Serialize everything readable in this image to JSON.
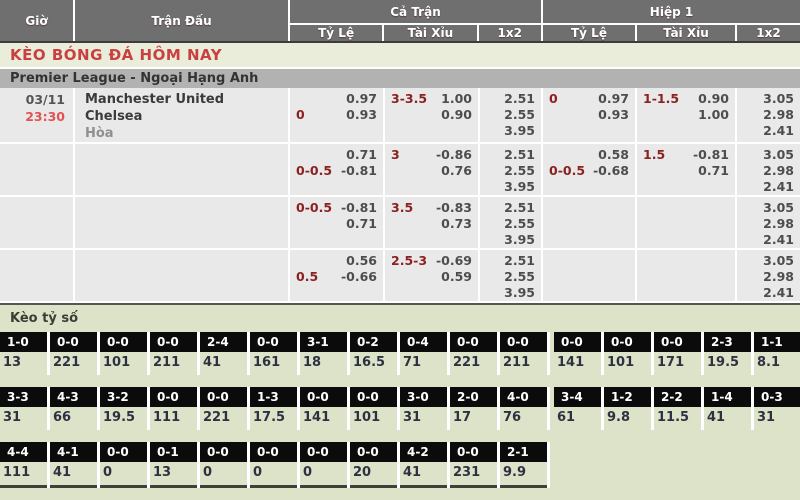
{
  "header": {
    "gio": "Giờ",
    "tran_dau": "Trận Đấu",
    "ca_tran": "Cả Trận",
    "hiep_1": "Hiệp 1",
    "ty_le": "Tỷ Lệ",
    "tai_xiu": "Tài Xỉu",
    "one_x_two": "1x2"
  },
  "title": {
    "text": "KÈO BÓNG ĐÁ HÔM NAY"
  },
  "league": {
    "text": "Premier League - Ngoại Hạng Anh"
  },
  "match": {
    "date": "03/11",
    "time": "23:30",
    "home": "Manchester United",
    "away": "Chelsea",
    "draw_label": "Hòa"
  },
  "odds_rows": [
    {
      "ft_hcp": [
        {
          "h": "",
          "o": "0.97"
        },
        {
          "h": "0",
          "o": "0.93"
        }
      ],
      "ft_ou": [
        {
          "h": "3-3.5",
          "o": "1.00"
        },
        {
          "h": "",
          "o": "0.90"
        }
      ],
      "ft_1x2": [
        "2.51",
        "2.55",
        "3.95"
      ],
      "h1_hcp": [
        {
          "h": "0",
          "o": "0.97"
        },
        {
          "h": "",
          "o": "0.93"
        }
      ],
      "h1_ou": [
        {
          "h": "1-1.5",
          "o": "0.90"
        },
        {
          "h": "",
          "o": "1.00"
        }
      ],
      "h1_1x2": [
        "3.05",
        "2.98",
        "2.41"
      ]
    },
    {
      "ft_hcp": [
        {
          "h": "",
          "o": "0.71"
        },
        {
          "h": "0-0.5",
          "o": "-0.81"
        }
      ],
      "ft_ou": [
        {
          "h": "3",
          "o": "-0.86"
        },
        {
          "h": "",
          "o": "0.76"
        }
      ],
      "ft_1x2": [
        "2.51",
        "2.55",
        "3.95"
      ],
      "h1_hcp": [
        {
          "h": "",
          "o": "0.58"
        },
        {
          "h": "0-0.5",
          "o": "-0.68"
        }
      ],
      "h1_ou": [
        {
          "h": "1.5",
          "o": "-0.81"
        },
        {
          "h": "",
          "o": "0.71"
        }
      ],
      "h1_1x2": [
        "3.05",
        "2.98",
        "2.41"
      ]
    },
    {
      "ft_hcp": [
        {
          "h": "0-0.5",
          "o": "-0.81"
        },
        {
          "h": "",
          "o": "0.71"
        }
      ],
      "ft_ou": [
        {
          "h": "3.5",
          "o": "-0.83"
        },
        {
          "h": "",
          "o": "0.73"
        }
      ],
      "ft_1x2": [
        "2.51",
        "2.55",
        "3.95"
      ],
      "h1_hcp": [],
      "h1_ou": [],
      "h1_1x2": [
        "3.05",
        "2.98",
        "2.41"
      ]
    },
    {
      "ft_hcp": [
        {
          "h": "",
          "o": "0.56"
        },
        {
          "h": "0.5",
          "o": "-0.66"
        }
      ],
      "ft_ou": [
        {
          "h": "2.5-3",
          "o": "-0.69"
        },
        {
          "h": "",
          "o": "0.59"
        }
      ],
      "ft_1x2": [
        "2.51",
        "2.55",
        "3.95"
      ],
      "h1_hcp": [],
      "h1_ou": [],
      "h1_1x2": [
        "3.05",
        "2.98",
        "2.41"
      ]
    }
  ],
  "score_section": {
    "title": "Kèo tỷ số",
    "rows": [
      [
        {
          "score": "1-0",
          "value": "13"
        },
        {
          "score": "0-0",
          "value": "221"
        },
        {
          "score": "0-0",
          "value": "101"
        },
        {
          "score": "0-0",
          "value": "211"
        },
        {
          "score": "2-4",
          "value": "41"
        },
        {
          "score": "0-0",
          "value": "161"
        },
        {
          "score": "3-1",
          "value": "18"
        },
        {
          "score": "0-2",
          "value": "16.5"
        },
        {
          "score": "0-4",
          "value": "71"
        },
        {
          "score": "0-0",
          "value": "221"
        },
        {
          "score": "0-0",
          "value": "211"
        },
        {
          "score": "0-0",
          "value": "141"
        },
        {
          "score": "0-0",
          "value": "101"
        },
        {
          "score": "0-0",
          "value": "171"
        },
        {
          "score": "2-3",
          "value": "19.5"
        },
        {
          "score": "1-1",
          "value": "8.1"
        }
      ],
      [
        {
          "score": "3-3",
          "value": "31"
        },
        {
          "score": "4-3",
          "value": "66"
        },
        {
          "score": "3-2",
          "value": "19.5"
        },
        {
          "score": "0-0",
          "value": "111"
        },
        {
          "score": "0-0",
          "value": "221"
        },
        {
          "score": "1-3",
          "value": "17.5"
        },
        {
          "score": "0-0",
          "value": "141"
        },
        {
          "score": "0-0",
          "value": "101"
        },
        {
          "score": "3-0",
          "value": "31"
        },
        {
          "score": "2-0",
          "value": "17"
        },
        {
          "score": "4-0",
          "value": "76"
        },
        {
          "score": "3-4",
          "value": "61"
        },
        {
          "score": "1-2",
          "value": "9.8"
        },
        {
          "score": "2-2",
          "value": "11.5"
        },
        {
          "score": "1-4",
          "value": "41"
        },
        {
          "score": "0-3",
          "value": "31"
        }
      ],
      [
        {
          "score": "4-4",
          "value": "111"
        },
        {
          "score": "4-1",
          "value": "41"
        },
        {
          "score": "0-0",
          "value": "0"
        },
        {
          "score": "0-1",
          "value": "13"
        },
        {
          "score": "0-0",
          "value": "0"
        },
        {
          "score": "0-0",
          "value": "0"
        },
        {
          "score": "0-0",
          "value": "0"
        },
        {
          "score": "0-0",
          "value": "20"
        },
        {
          "score": "4-2",
          "value": "41"
        },
        {
          "score": "0-0",
          "value": "231"
        },
        {
          "score": "2-1",
          "value": "9.9"
        }
      ]
    ]
  },
  "colors": {
    "header_bg": "#6f6f6f",
    "title_red": "#c94040",
    "handicap_maroon": "#8b2121",
    "odds_gray": "#4d4d4d",
    "time_red": "#e05353",
    "section_green": "#dce3c9",
    "score_black": "#0b0b0b",
    "row_gray": "#e9e9e9"
  }
}
